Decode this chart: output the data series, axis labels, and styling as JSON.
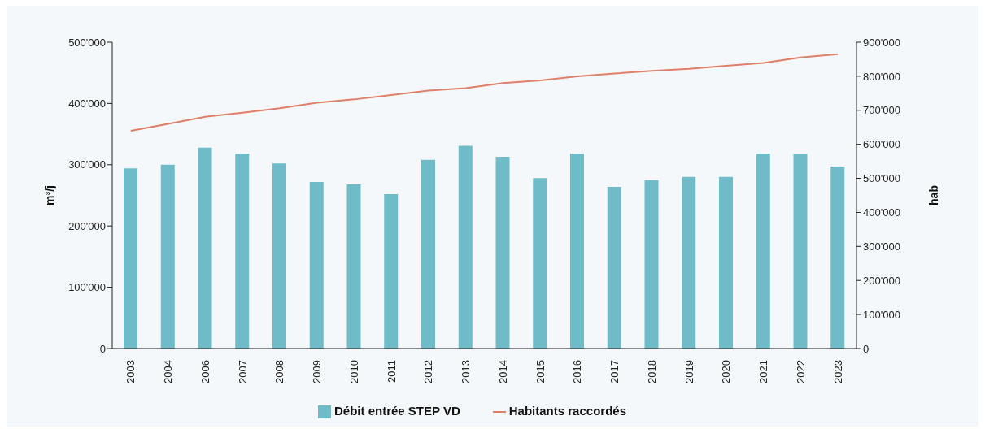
{
  "chart_data": {
    "type": "bar",
    "ylabel": "m³/j",
    "y2label": "hab",
    "categories": [
      "2003",
      "2004",
      "2006",
      "2007",
      "2008",
      "2009",
      "2010",
      "2011",
      "2012",
      "2013",
      "2014",
      "2015",
      "2016",
      "2017",
      "2018",
      "2019",
      "2020",
      "2021",
      "2022",
      "2023"
    ],
    "series": [
      {
        "name": "Débit entrée STEP VD",
        "color": "#6fbbc7",
        "values": [
          294000,
          300000,
          328000,
          318000,
          302000,
          272000,
          268000,
          252000,
          308000,
          331000,
          313000,
          278000,
          318000,
          264000,
          275000,
          280000,
          280000,
          318000,
          318000,
          297000
        ]
      },
      {
        "name": "Habitants raccordés",
        "type": "line",
        "axis": "y2",
        "color": "#e07f68",
        "values": [
          640000,
          660000,
          681000,
          693000,
          706000,
          722000,
          732000,
          745000,
          758000,
          765000,
          780000,
          788000,
          800000,
          808000,
          816000,
          822000,
          831000,
          839000,
          855000,
          865000
        ]
      }
    ],
    "ylim": [
      0,
      500000
    ],
    "yticks": [
      0,
      {
        "value": 100000,
        "label": "100'000"
      },
      {
        "value": 200000,
        "label": "200'000"
      },
      {
        "value": 300000,
        "label": "300'000"
      },
      {
        "value": 400000,
        "label": "400'000"
      },
      {
        "value": 500000,
        "label": "500'000"
      }
    ],
    "y2lim": [
      0,
      900000
    ],
    "y2ticks": [
      0,
      {
        "value": 100000,
        "label": "100'000"
      },
      {
        "value": 200000,
        "label": "200'000"
      },
      {
        "value": 300000,
        "label": "300'000"
      },
      {
        "value": 400000,
        "label": "400'000"
      },
      {
        "value": 500000,
        "label": "500'000"
      },
      {
        "value": 600000,
        "label": "600'000"
      },
      {
        "value": 700000,
        "label": "700'000"
      },
      {
        "value": 800000,
        "label": "800'000"
      },
      {
        "value": 900000,
        "label": "900'000"
      }
    ],
    "grid": false,
    "legend": "bottom",
    "marker": "none",
    "line_style": "solid"
  }
}
